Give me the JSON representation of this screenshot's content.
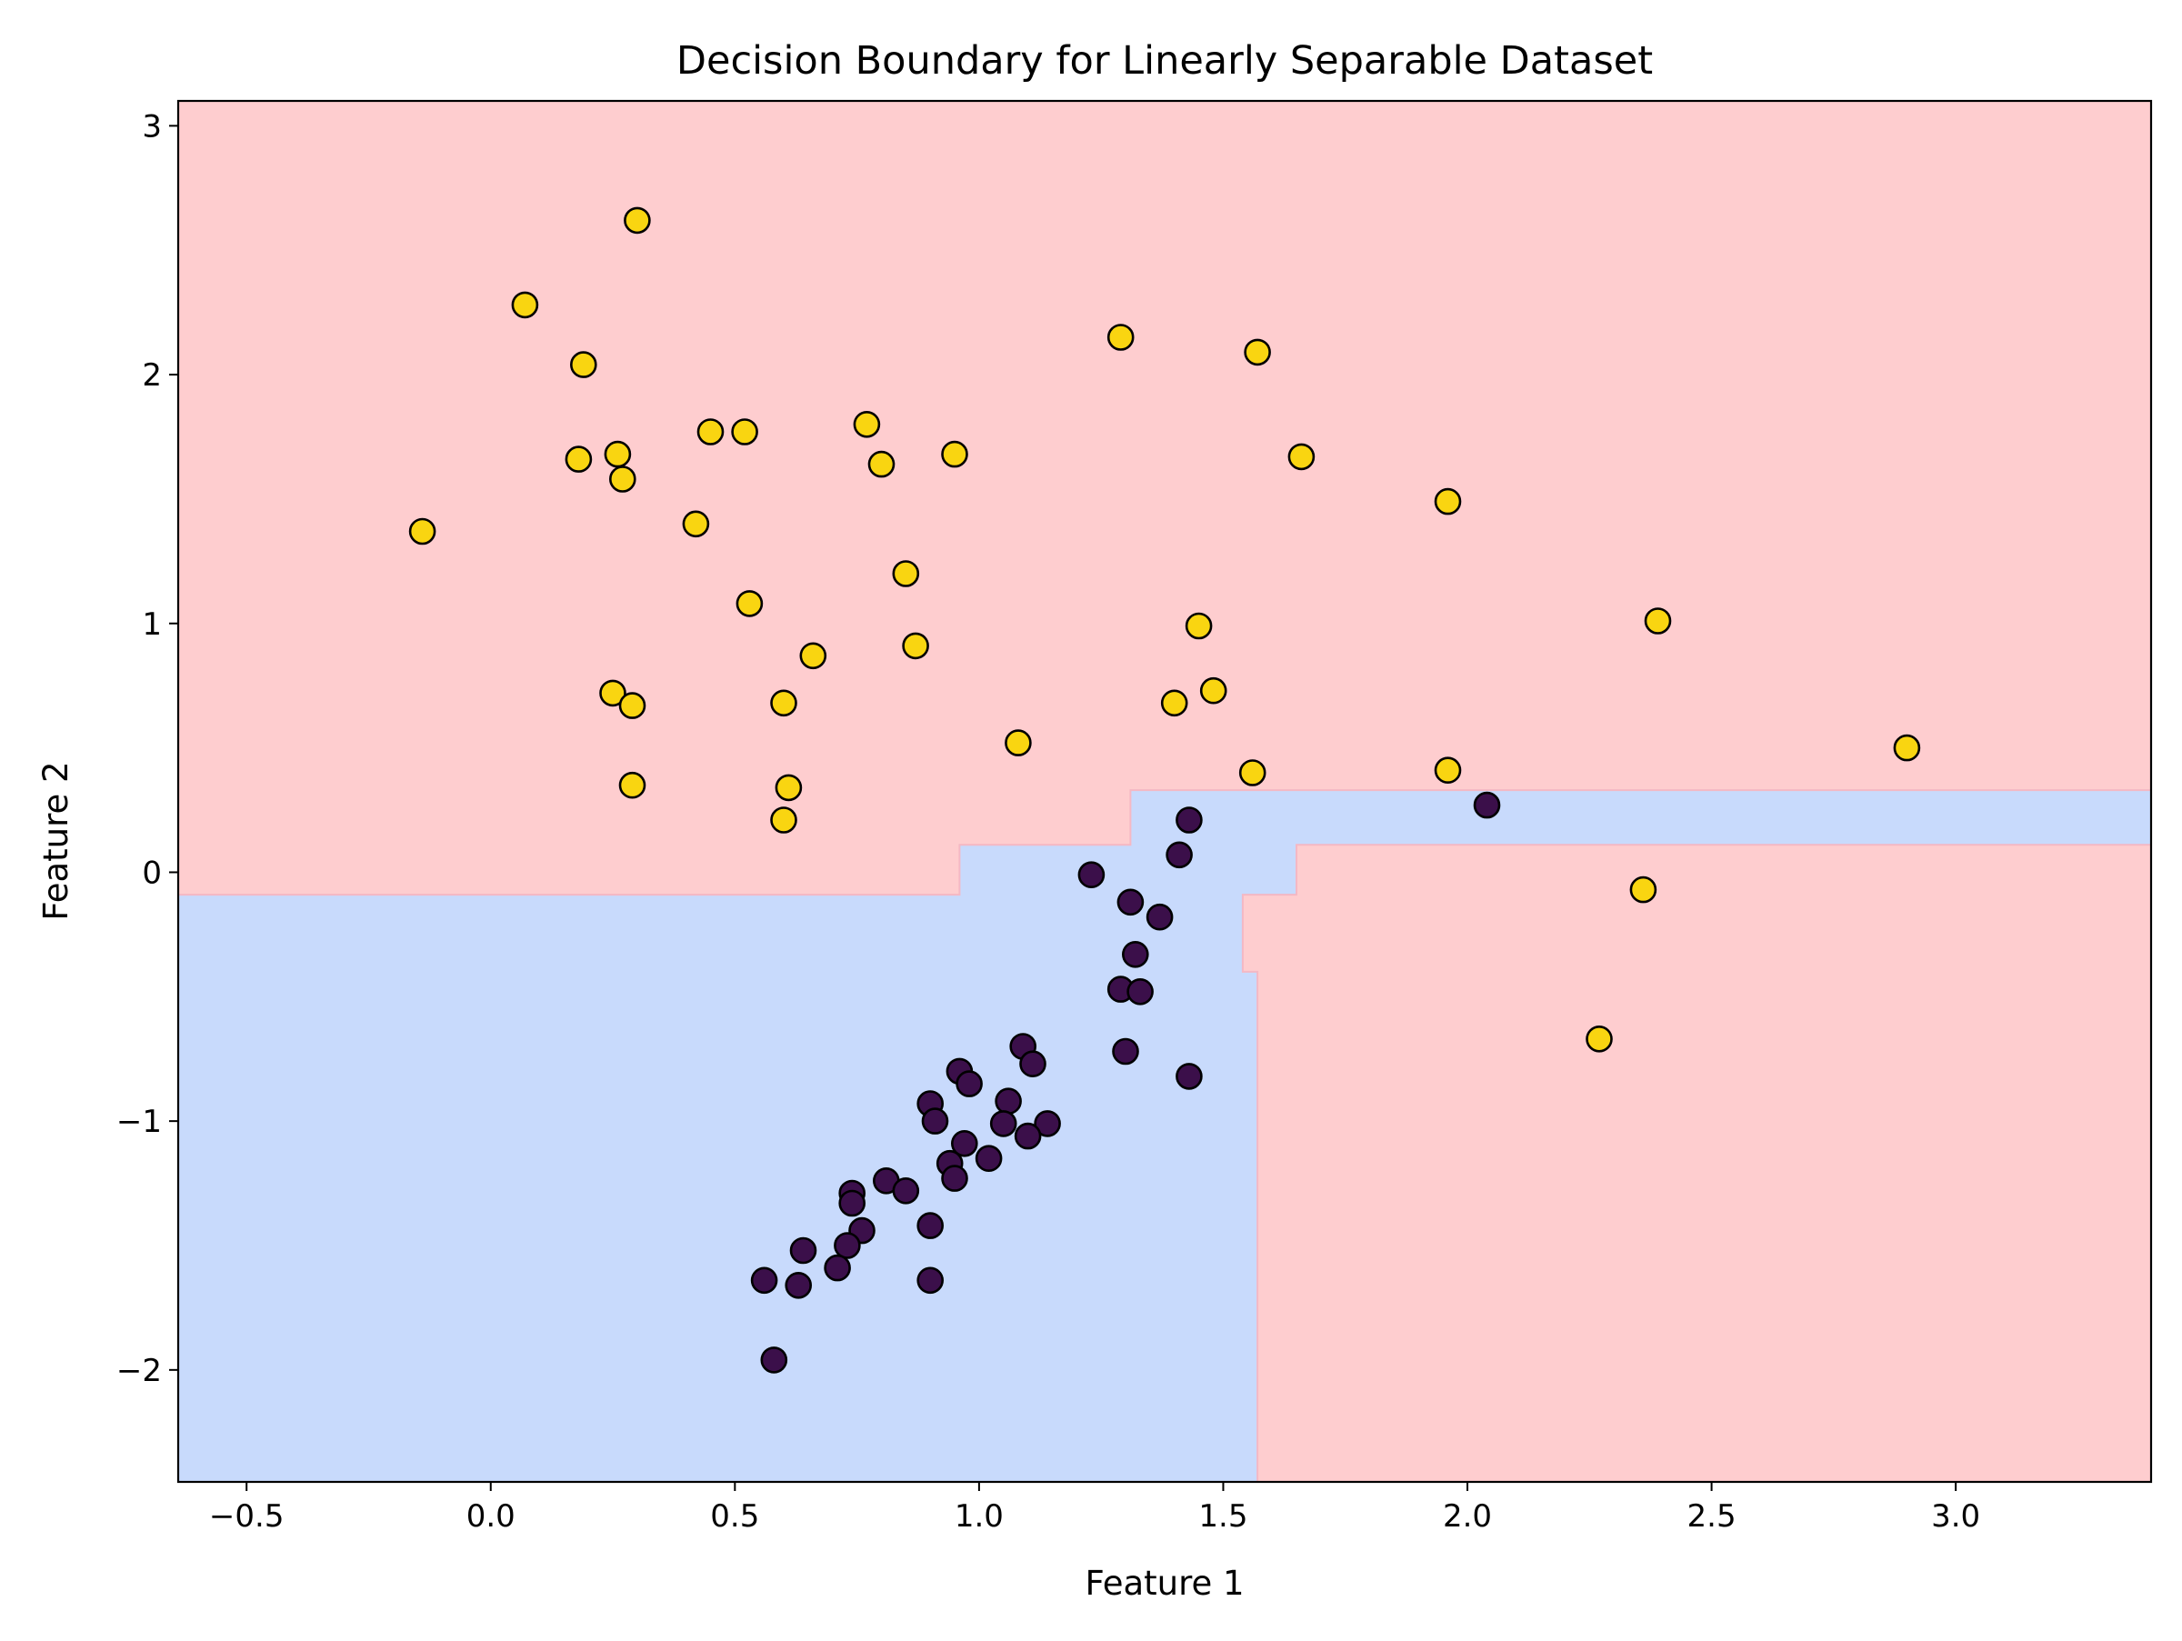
{
  "chart_data": {
    "type": "scatter",
    "title": "Decision Boundary for Linearly Separable Dataset",
    "xlabel": "Feature 1",
    "ylabel": "Feature 2",
    "xlim": [
      -0.64,
      3.4
    ],
    "ylim": [
      -2.45,
      3.1
    ],
    "xticks": [
      -0.5,
      0.0,
      0.5,
      1.0,
      1.5,
      2.0,
      2.5,
      3.0
    ],
    "xtick_labels": [
      "−0.5",
      "0.0",
      "0.5",
      "1.0",
      "1.5",
      "2.0",
      "2.5",
      "3.0"
    ],
    "yticks": [
      -2,
      -1,
      0,
      1,
      2,
      3
    ],
    "ytick_labels": [
      "−2",
      "−1",
      "0",
      "1",
      "2",
      "3"
    ],
    "grid": false,
    "legend": false,
    "colors": {
      "region_class_0": "#c8dafc",
      "region_class_1": "#fecdcf",
      "class_0_marker": "#3b0f4a",
      "class_1_marker": "#f9d511",
      "marker_edge": "#000000"
    },
    "decision_region_class_0": [
      [
        -0.64,
        -0.09
      ],
      [
        0.96,
        -0.09
      ],
      [
        0.96,
        0.11
      ],
      [
        1.31,
        0.11
      ],
      [
        1.31,
        0.33
      ],
      [
        3.4,
        0.33
      ],
      [
        3.4,
        0.11
      ],
      [
        1.65,
        0.11
      ],
      [
        1.65,
        -0.09
      ],
      [
        1.54,
        -0.09
      ],
      [
        1.54,
        -0.4
      ],
      [
        1.57,
        -0.4
      ],
      [
        1.57,
        -2.45
      ],
      [
        -0.64,
        -2.45
      ]
    ],
    "series": [
      {
        "class": 0,
        "points": [
          [
            2.04,
            0.27
          ],
          [
            1.43,
            0.21
          ],
          [
            1.41,
            0.07
          ],
          [
            1.23,
            -0.01
          ],
          [
            1.31,
            -0.12
          ],
          [
            1.37,
            -0.18
          ],
          [
            1.32,
            -0.33
          ],
          [
            1.29,
            -0.47
          ],
          [
            1.33,
            -0.48
          ],
          [
            1.09,
            -0.7
          ],
          [
            1.3,
            -0.72
          ],
          [
            1.11,
            -0.77
          ],
          [
            0.96,
            -0.8
          ],
          [
            1.43,
            -0.82
          ],
          [
            0.98,
            -0.85
          ],
          [
            0.9,
            -0.93
          ],
          [
            1.06,
            -0.92
          ],
          [
            0.91,
            -1.0
          ],
          [
            1.05,
            -1.01
          ],
          [
            1.14,
            -1.01
          ],
          [
            1.1,
            -1.06
          ],
          [
            0.97,
            -1.09
          ],
          [
            0.94,
            -1.17
          ],
          [
            1.02,
            -1.15
          ],
          [
            0.95,
            -1.23
          ],
          [
            0.81,
            -1.24
          ],
          [
            0.85,
            -1.28
          ],
          [
            0.74,
            -1.29
          ],
          [
            0.74,
            -1.33
          ],
          [
            0.76,
            -1.44
          ],
          [
            0.9,
            -1.42
          ],
          [
            0.73,
            -1.5
          ],
          [
            0.64,
            -1.52
          ],
          [
            0.71,
            -1.59
          ],
          [
            0.56,
            -1.64
          ],
          [
            0.63,
            -1.66
          ],
          [
            0.9,
            -1.64
          ],
          [
            0.58,
            -1.96
          ]
        ]
      },
      {
        "class": 1,
        "points": [
          [
            0.3,
            2.62
          ],
          [
            0.07,
            2.28
          ],
          [
            0.19,
            2.04
          ],
          [
            1.29,
            2.15
          ],
          [
            1.57,
            2.09
          ],
          [
            0.45,
            1.77
          ],
          [
            0.52,
            1.77
          ],
          [
            0.77,
            1.8
          ],
          [
            0.18,
            1.66
          ],
          [
            0.26,
            1.68
          ],
          [
            0.27,
            1.58
          ],
          [
            0.8,
            1.64
          ],
          [
            0.95,
            1.68
          ],
          [
            1.66,
            1.67
          ],
          [
            1.96,
            1.49
          ],
          [
            -0.14,
            1.37
          ],
          [
            0.42,
            1.4
          ],
          [
            0.85,
            1.2
          ],
          [
            0.53,
            1.08
          ],
          [
            1.45,
            0.99
          ],
          [
            2.39,
            1.01
          ],
          [
            0.87,
            0.91
          ],
          [
            0.66,
            0.87
          ],
          [
            0.25,
            0.72
          ],
          [
            0.29,
            0.67
          ],
          [
            0.6,
            0.68
          ],
          [
            1.4,
            0.68
          ],
          [
            1.48,
            0.73
          ],
          [
            1.08,
            0.52
          ],
          [
            2.9,
            0.5
          ],
          [
            1.56,
            0.4
          ],
          [
            1.96,
            0.41
          ],
          [
            0.29,
            0.35
          ],
          [
            0.61,
            0.34
          ],
          [
            0.6,
            0.21
          ],
          [
            2.36,
            -0.07
          ],
          [
            2.27,
            -0.67
          ]
        ]
      }
    ]
  }
}
